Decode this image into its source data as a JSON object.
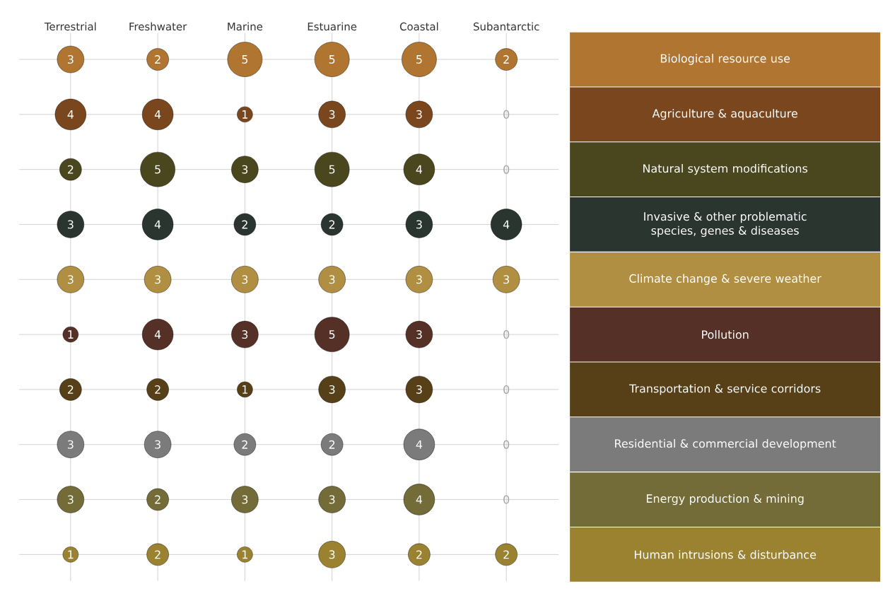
{
  "chart_data": {
    "type": "heatmap",
    "categories": [
      "Terrestrial",
      "Freshwater",
      "Marine",
      "Estuarine",
      "Coastal",
      "Subantarctic"
    ],
    "y_categories": [
      "Biological resource use",
      "Agriculture & aquaculture",
      "Natural system modifications",
      "Invasive & other problematic species, genes & diseases",
      "Climate change & severe weather",
      "Pollution",
      "Transportation & service corridors",
      "Residential & commercial development",
      "Energy production & mining",
      "Human intrusions & disturbance"
    ],
    "colors": [
      "#b07530",
      "#7a461d",
      "#4a471e",
      "#2b3530",
      "#b08f42",
      "#553026",
      "#573f17",
      "#7c7b7b",
      "#736b38",
      "#9a8230"
    ],
    "cells": [
      [
        3,
        2,
        5,
        5,
        5,
        2
      ],
      [
        4,
        4,
        1,
        3,
        3,
        0
      ],
      [
        2,
        5,
        3,
        5,
        4,
        0
      ],
      [
        3,
        4,
        2,
        2,
        3,
        4
      ],
      [
        3,
        3,
        3,
        3,
        3,
        3
      ],
      [
        1,
        4,
        3,
        5,
        3,
        0
      ],
      [
        2,
        2,
        1,
        3,
        3,
        0
      ],
      [
        3,
        3,
        2,
        2,
        4,
        0
      ],
      [
        3,
        2,
        3,
        3,
        4,
        0
      ],
      [
        1,
        2,
        1,
        3,
        2,
        2
      ]
    ],
    "data_labels": true,
    "grid": true
  }
}
